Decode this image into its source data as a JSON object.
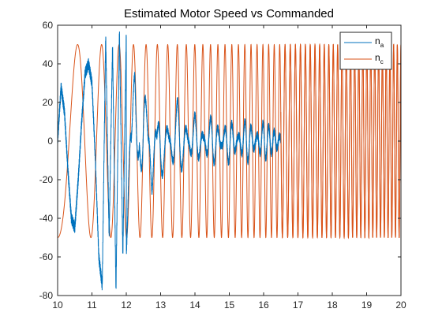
{
  "chart_data": {
    "type": "line",
    "title": "Estimated Motor Speed vs Commanded",
    "xlabel": "",
    "ylabel": "",
    "xlim": [
      10,
      20
    ],
    "ylim": [
      -80,
      60
    ],
    "xticks": [
      10,
      11,
      12,
      13,
      14,
      15,
      16,
      17,
      18,
      19,
      20
    ],
    "yticks": [
      -80,
      -60,
      -40,
      -20,
      0,
      20,
      40,
      60
    ],
    "legend_position": "top-right",
    "grid": false,
    "series": [
      {
        "name": "n",
        "subscript": "a",
        "color": "#0072BD",
        "x": [
          10.0,
          10.1,
          10.2,
          10.3,
          10.4,
          10.5,
          10.6,
          10.7,
          10.8,
          10.9,
          11.0,
          11.1,
          11.2,
          11.3,
          11.4,
          11.5,
          11.6,
          11.7,
          11.8,
          11.9,
          12.0,
          12.25,
          12.5,
          12.75,
          13.0,
          13.5,
          14.0,
          14.5,
          15.0,
          15.5,
          16.0,
          16.5
        ],
        "y": [
          0,
          28,
          15,
          -15,
          -40,
          -45,
          -20,
          10,
          35,
          40,
          30,
          -10,
          -60,
          -75,
          55,
          -50,
          50,
          -78,
          58,
          -60,
          57,
          -40,
          35,
          -25,
          20,
          -20,
          12,
          -12,
          10,
          -10,
          8,
          0
        ]
      },
      {
        "name": "n",
        "subscript": "c",
        "color": "#D95319",
        "amplitude": 50,
        "x": [
          10.0,
          12.0,
          14.0,
          16.0,
          16.5,
          18.0,
          20.0
        ],
        "y": [
          -50,
          50,
          -50,
          50,
          -50,
          50,
          -50
        ]
      }
    ]
  }
}
